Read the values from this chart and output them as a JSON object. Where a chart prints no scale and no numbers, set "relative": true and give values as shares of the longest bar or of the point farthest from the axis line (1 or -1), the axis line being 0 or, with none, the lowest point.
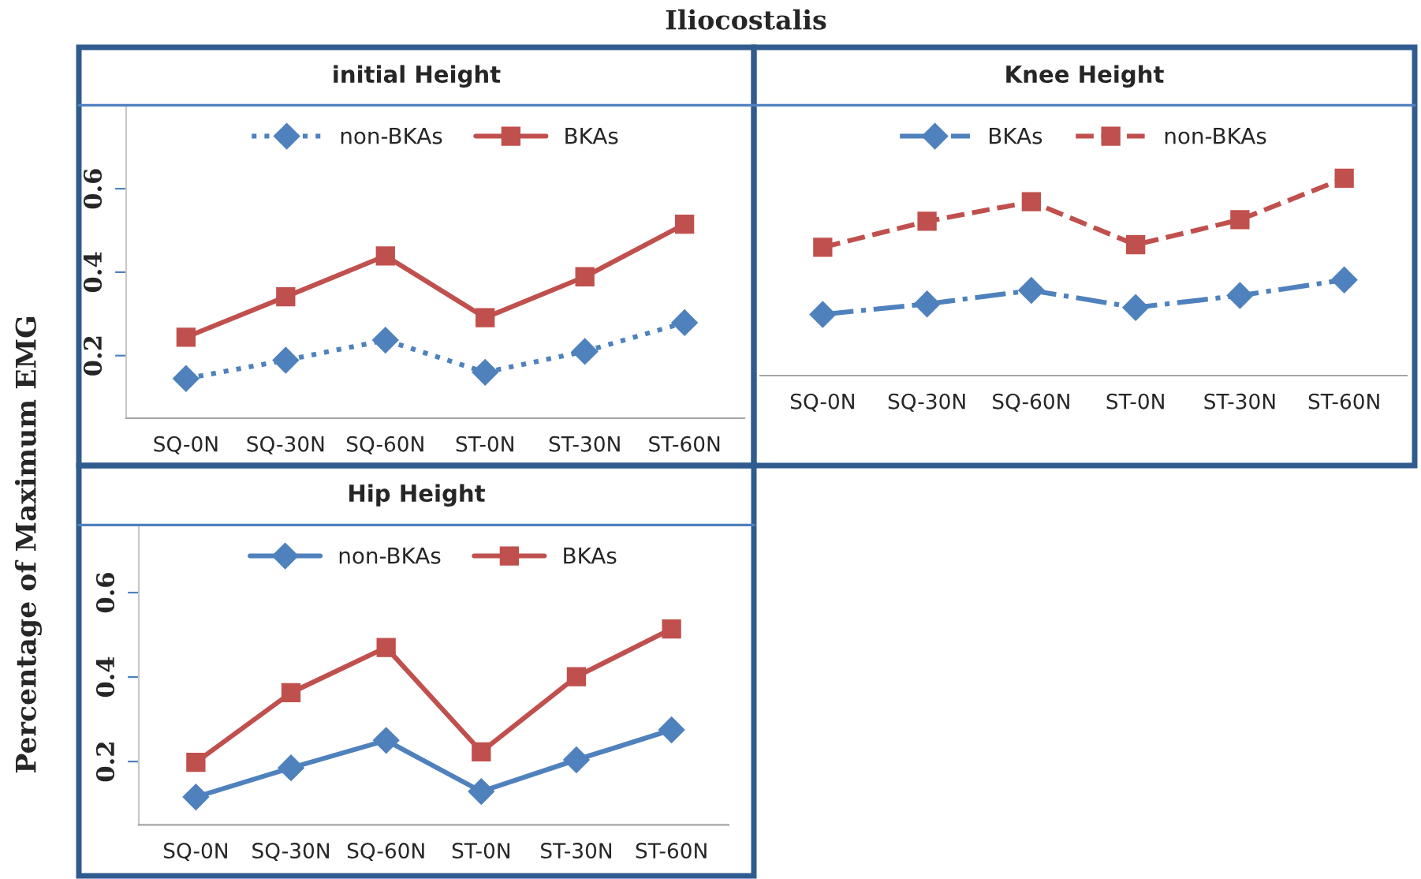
{
  "chart_data": [
    {
      "type": "line",
      "title": "initial Height",
      "ylabel": "Percentage of Maximum EMG",
      "annotations": [
        "Iliocostalis"
      ],
      "categories": [
        "SQ-0N",
        "SQ-30N",
        "SQ-60N",
        "ST-0N",
        "ST-30N",
        "ST-60N"
      ],
      "series": [
        {
          "name": "non-BKAs",
          "color": "#4f81bd",
          "marker": "diamond",
          "line_style": "dotted",
          "values": [
            0.145,
            0.189,
            0.237,
            0.16,
            0.21,
            0.279
          ]
        },
        {
          "name": "BKAs",
          "color": "#c0504d",
          "marker": "square",
          "line_style": "solid",
          "values": [
            0.244,
            0.341,
            0.439,
            0.291,
            0.389,
            0.515
          ]
        }
      ],
      "ylim": [
        0.05,
        0.8
      ],
      "yticks": [
        0.2,
        0.4,
        0.6
      ],
      "legend": "top",
      "grid": false
    },
    {
      "type": "line",
      "title": "Knee Height",
      "categories": [
        "SQ-0N",
        "SQ-30N",
        "SQ-60N",
        "ST-0N",
        "ST-30N",
        "ST-60N"
      ],
      "series": [
        {
          "name": "BKAs",
          "color": "#4f81bd",
          "marker": "diamond",
          "line_style": "dashdot",
          "values": [
            0.31,
            0.363,
            0.432,
            0.345,
            0.406,
            0.485
          ]
        },
        {
          "name": "non-BKAs",
          "color": "#c0504d",
          "marker": "square",
          "line_style": "dashed",
          "values": [
            0.65,
            0.782,
            0.881,
            0.663,
            0.79,
            1.0
          ]
        }
      ],
      "relative": true,
      "tick_labels": "x",
      "legend": "top",
      "grid": false
    },
    {
      "type": "line",
      "title": "Hip Height",
      "categories": [
        "SQ-0N",
        "SQ-30N",
        "SQ-60N",
        "ST-0N",
        "ST-30N",
        "ST-60N"
      ],
      "series": [
        {
          "name": "non-BKAs",
          "color": "#4f81bd",
          "marker": "diamond",
          "line_style": "solid",
          "values": [
            0.116,
            0.185,
            0.25,
            0.129,
            0.204,
            0.275
          ]
        },
        {
          "name": "BKAs",
          "color": "#c0504d",
          "marker": "square",
          "line_style": "solid",
          "values": [
            0.198,
            0.363,
            0.47,
            0.223,
            0.401,
            0.514
          ]
        }
      ],
      "ylim": [
        0.05,
        0.76
      ],
      "yticks": [
        0.2,
        0.4,
        0.6
      ],
      "legend": "top",
      "grid": false
    }
  ]
}
